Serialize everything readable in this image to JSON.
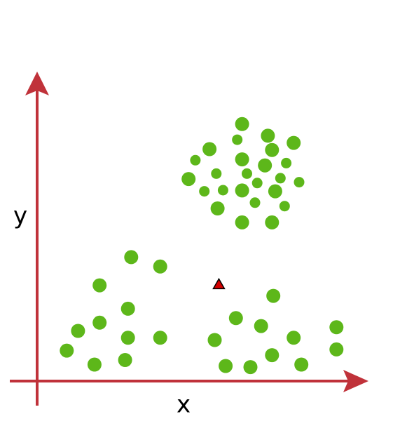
{
  "chart_data": {
    "type": "scatter",
    "title": "",
    "xlabel": "x",
    "ylabel": "y",
    "xlim": [
      0,
      100
    ],
    "ylim": [
      0,
      100
    ],
    "grid": false,
    "axis_color": "#c0323a",
    "point_color": "#5db71a",
    "marker_color": "#d40000",
    "points": [
      {
        "x": 63.6,
        "y": 90.2,
        "size": "large"
      },
      {
        "x": 71.6,
        "y": 86.1,
        "size": "large"
      },
      {
        "x": 62.1,
        "y": 84.7,
        "size": "small"
      },
      {
        "x": 79.6,
        "y": 83.6,
        "size": "large"
      },
      {
        "x": 53.5,
        "y": 81.4,
        "size": "large"
      },
      {
        "x": 72.9,
        "y": 81.1,
        "size": "large"
      },
      {
        "x": 63.6,
        "y": 77.8,
        "size": "large"
      },
      {
        "x": 49.1,
        "y": 77.5,
        "size": "small"
      },
      {
        "x": 70.7,
        "y": 75.7,
        "size": "large"
      },
      {
        "x": 77.3,
        "y": 76.5,
        "size": "small"
      },
      {
        "x": 55.6,
        "y": 72.8,
        "size": "small"
      },
      {
        "x": 65.1,
        "y": 72.8,
        "size": "small"
      },
      {
        "x": 75.5,
        "y": 71.2,
        "size": "small"
      },
      {
        "x": 47.0,
        "y": 70.9,
        "size": "large"
      },
      {
        "x": 68.3,
        "y": 69.5,
        "size": "small"
      },
      {
        "x": 81.3,
        "y": 69.8,
        "size": "small"
      },
      {
        "x": 51.9,
        "y": 66.6,
        "size": "small"
      },
      {
        "x": 57.7,
        "y": 67.0,
        "size": "small"
      },
      {
        "x": 63.6,
        "y": 66.9,
        "size": "large"
      },
      {
        "x": 73.9,
        "y": 66.6,
        "size": "large"
      },
      {
        "x": 67.6,
        "y": 62.6,
        "size": "small"
      },
      {
        "x": 56.0,
        "y": 60.6,
        "size": "large"
      },
      {
        "x": 76.8,
        "y": 61.4,
        "size": "small"
      },
      {
        "x": 63.6,
        "y": 55.7,
        "size": "large"
      },
      {
        "x": 72.9,
        "y": 55.7,
        "size": "large"
      },
      {
        "x": 29.2,
        "y": 43.5,
        "size": "large"
      },
      {
        "x": 38.2,
        "y": 40.2,
        "size": "large"
      },
      {
        "x": 19.4,
        "y": 33.6,
        "size": "large"
      },
      {
        "x": 73.3,
        "y": 29.9,
        "size": "large"
      },
      {
        "x": 28.2,
        "y": 25.4,
        "size": "large"
      },
      {
        "x": 61.7,
        "y": 22.1,
        "size": "large"
      },
      {
        "x": 19.4,
        "y": 20.5,
        "size": "large"
      },
      {
        "x": 69.5,
        "y": 19.3,
        "size": "large"
      },
      {
        "x": 92.9,
        "y": 18.9,
        "size": "large"
      },
      {
        "x": 12.7,
        "y": 17.6,
        "size": "large"
      },
      {
        "x": 79.6,
        "y": 15.2,
        "size": "large"
      },
      {
        "x": 28.2,
        "y": 15.2,
        "size": "large"
      },
      {
        "x": 38.2,
        "y": 15.2,
        "size": "large"
      },
      {
        "x": 55.1,
        "y": 14.4,
        "size": "large"
      },
      {
        "x": 9.2,
        "y": 10.7,
        "size": "large"
      },
      {
        "x": 92.9,
        "y": 11.1,
        "size": "large"
      },
      {
        "x": 72.9,
        "y": 9.1,
        "size": "large"
      },
      {
        "x": 27.3,
        "y": 7.4,
        "size": "large"
      },
      {
        "x": 17.8,
        "y": 5.8,
        "size": "large"
      },
      {
        "x": 82.0,
        "y": 5.8,
        "size": "large"
      },
      {
        "x": 58.5,
        "y": 5.3,
        "size": "large"
      },
      {
        "x": 66.2,
        "y": 4.9,
        "size": "large"
      }
    ],
    "marker": {
      "x": 56.4,
      "y": 33.9,
      "shape": "triangle"
    }
  }
}
